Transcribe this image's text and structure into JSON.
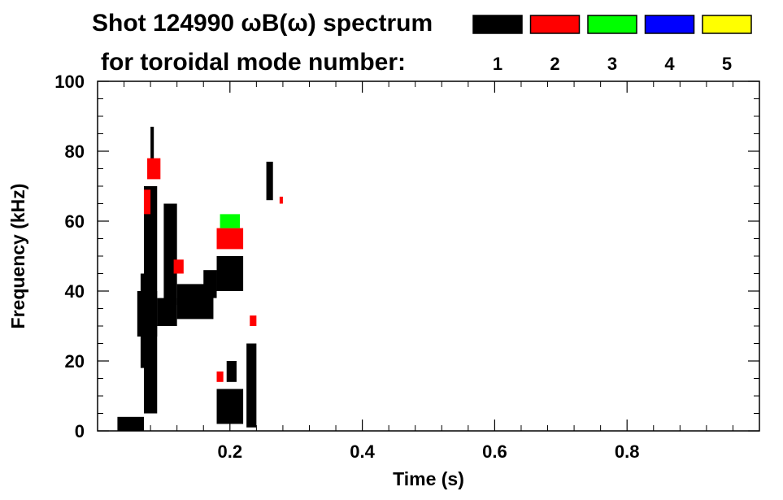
{
  "chart_data": {
    "type": "heatmap",
    "title_line1": "Shot 124990 ωB(ω) spectrum",
    "title_line2": "for toroidal mode number:",
    "xlabel": "Time (s)",
    "ylabel": "Frequency (kHz)",
    "xlim": [
      0.0,
      1.0
    ],
    "ylim": [
      0,
      100
    ],
    "x_ticks": [
      "0.2",
      "0.4",
      "0.6",
      "0.8"
    ],
    "x_tick_values": [
      0.2,
      0.4,
      0.6,
      0.8
    ],
    "y_ticks": [
      "0",
      "20",
      "40",
      "60",
      "80",
      "100"
    ],
    "y_tick_values": [
      0,
      20,
      40,
      60,
      80,
      100
    ],
    "grid": false,
    "legend": {
      "placement": "top-right",
      "entries": [
        {
          "mode": "1",
          "color": "#000000"
        },
        {
          "mode": "2",
          "color": "#ff0000"
        },
        {
          "mode": "3",
          "color": "#00ff00"
        },
        {
          "mode": "4",
          "color": "#0000ff"
        },
        {
          "mode": "5",
          "color": "#ffff00"
        }
      ]
    },
    "regions": [
      {
        "mode": "1",
        "t": [
          0.03,
          0.07
        ],
        "f": [
          0,
          4
        ]
      },
      {
        "mode": "1",
        "t": [
          0.06,
          0.09
        ],
        "f": [
          27,
          40
        ]
      },
      {
        "mode": "1",
        "t": [
          0.065,
          0.085
        ],
        "f": [
          18,
          45
        ]
      },
      {
        "mode": "1",
        "t": [
          0.07,
          0.09
        ],
        "f": [
          5,
          70
        ]
      },
      {
        "mode": "1",
        "t": [
          0.09,
          0.12
        ],
        "f": [
          30,
          38
        ]
      },
      {
        "mode": "1",
        "t": [
          0.1,
          0.12
        ],
        "f": [
          36,
          65
        ]
      },
      {
        "mode": "1",
        "t": [
          0.12,
          0.175
        ],
        "f": [
          32,
          42
        ]
      },
      {
        "mode": "1",
        "t": [
          0.16,
          0.18
        ],
        "f": [
          38,
          46
        ]
      },
      {
        "mode": "1",
        "t": [
          0.18,
          0.22
        ],
        "f": [
          40,
          50
        ]
      },
      {
        "mode": "1",
        "t": [
          0.18,
          0.22
        ],
        "f": [
          2,
          12
        ]
      },
      {
        "mode": "1",
        "t": [
          0.195,
          0.21
        ],
        "f": [
          14,
          20
        ]
      },
      {
        "mode": "1",
        "t": [
          0.225,
          0.24
        ],
        "f": [
          1,
          25
        ]
      },
      {
        "mode": "1",
        "t": [
          0.255,
          0.265
        ],
        "f": [
          66,
          77
        ]
      },
      {
        "mode": "1",
        "t": [
          0.08,
          0.085
        ],
        "f": [
          76,
          87
        ]
      },
      {
        "mode": "2",
        "t": [
          0.07,
          0.08
        ],
        "f": [
          62,
          69
        ]
      },
      {
        "mode": "2",
        "t": [
          0.075,
          0.095
        ],
        "f": [
          72,
          78
        ]
      },
      {
        "mode": "2",
        "t": [
          0.18,
          0.22
        ],
        "f": [
          52,
          58
        ]
      },
      {
        "mode": "2",
        "t": [
          0.115,
          0.13
        ],
        "f": [
          45,
          49
        ]
      },
      {
        "mode": "2",
        "t": [
          0.18,
          0.19
        ],
        "f": [
          14,
          17
        ]
      },
      {
        "mode": "2",
        "t": [
          0.23,
          0.24
        ],
        "f": [
          30,
          33
        ]
      },
      {
        "mode": "2",
        "t": [
          0.275,
          0.28
        ],
        "f": [
          65,
          67
        ]
      },
      {
        "mode": "3",
        "t": [
          0.185,
          0.215
        ],
        "f": [
          58,
          62
        ]
      }
    ]
  }
}
